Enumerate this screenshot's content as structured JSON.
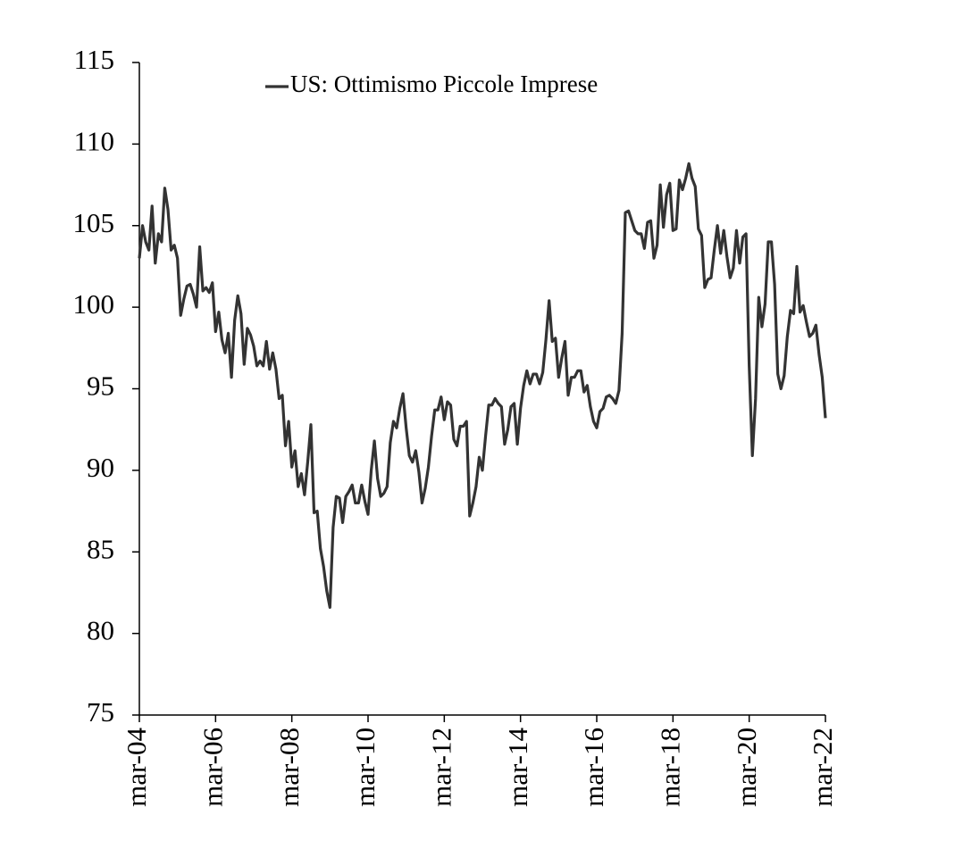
{
  "chart_data": {
    "type": "line",
    "categories": [
      "mar-04",
      null,
      null,
      null,
      null,
      null,
      null,
      null,
      null,
      null,
      null,
      null,
      null,
      null,
      null,
      null,
      null,
      null,
      null,
      null,
      null,
      null,
      null,
      null,
      "mar-06",
      null,
      null,
      null,
      null,
      null,
      null,
      null,
      null,
      null,
      null,
      null,
      null,
      null,
      null,
      null,
      null,
      null,
      null,
      null,
      null,
      null,
      null,
      null,
      "mar-08",
      null,
      null,
      null,
      null,
      null,
      null,
      null,
      null,
      null,
      null,
      null,
      null,
      null,
      null,
      null,
      null,
      null,
      null,
      null,
      null,
      null,
      null,
      null,
      "mar-10",
      null,
      null,
      null,
      null,
      null,
      null,
      null,
      null,
      null,
      null,
      null,
      null,
      null,
      null,
      null,
      null,
      null,
      null,
      null,
      null,
      null,
      null,
      null,
      "mar-12",
      null,
      null,
      null,
      null,
      null,
      null,
      null,
      null,
      null,
      null,
      null,
      null,
      null,
      null,
      null,
      null,
      null,
      null,
      null,
      null,
      null,
      null,
      null,
      "mar-14",
      null,
      null,
      null,
      null,
      null,
      null,
      null,
      null,
      null,
      null,
      null,
      null,
      null,
      null,
      null,
      null,
      null,
      null,
      null,
      null,
      null,
      null,
      null,
      "mar-16",
      null,
      null,
      null,
      null,
      null,
      null,
      null,
      null,
      null,
      null,
      null,
      null,
      null,
      null,
      null,
      null,
      null,
      null,
      null,
      null,
      null,
      null,
      null,
      "mar-18",
      null,
      null,
      null,
      null,
      null,
      null,
      null,
      null,
      null,
      null,
      null,
      null,
      null,
      null,
      null,
      null,
      null,
      null,
      null,
      null,
      null,
      null,
      null,
      "mar-20",
      null,
      null,
      null,
      null,
      null,
      null,
      null,
      null,
      null,
      null,
      null,
      null,
      null,
      null,
      null,
      null,
      null,
      null,
      null,
      null,
      null,
      null,
      null,
      "mar-22"
    ],
    "series": [
      {
        "name": "US: Ottimismo Piccole Imprese",
        "color": "#333333",
        "values": [
          103,
          105,
          104,
          103.5,
          106.2,
          102.7,
          104.5,
          104,
          107.3,
          106,
          103.5,
          103.8,
          103,
          99.5,
          100.5,
          101.3,
          101.4,
          100.8,
          100,
          103.7,
          101,
          101.2,
          100.9,
          101.5,
          98.5,
          99.7,
          98,
          97.2,
          98.4,
          95.7,
          99.2,
          100.7,
          99.6,
          96.5,
          98.7,
          98.3,
          97.6,
          96.4,
          96.7,
          96.4,
          97.9,
          96.2,
          97.2,
          96.2,
          94.4,
          94.6,
          91.5,
          93,
          90.2,
          91.2,
          89,
          89.8,
          88.5,
          90.5,
          92.8,
          87.4,
          87.5,
          85.2,
          84.1,
          82.6,
          81.6,
          86.5,
          88.4,
          88.3,
          86.8,
          88.4,
          88.7,
          89.1,
          88,
          88,
          89.1,
          88.1,
          87.3,
          90,
          91.8,
          89.5,
          88.4,
          88.6,
          89,
          91.7,
          93,
          92.6,
          93.8,
          94.7,
          92.6,
          90.9,
          90.5,
          91.2,
          89.9,
          88,
          88.9,
          90.2,
          92.1,
          93.7,
          93.7,
          94.5,
          93.1,
          94.2,
          94,
          91.9,
          91.5,
          92.7,
          92.7,
          93,
          87.2,
          88,
          89,
          90.8,
          90,
          92.1,
          94,
          94,
          94.4,
          94.1,
          93.9,
          91.6,
          92.5,
          93.9,
          94.1,
          91.6,
          93.8,
          95.2,
          96.1,
          95.3,
          95.9,
          95.9,
          95.3,
          96,
          98,
          100.4,
          97.9,
          98.1,
          95.7,
          96.9,
          97.9,
          94.6,
          95.7,
          95.7,
          96.1,
          96.1,
          94.8,
          95.2,
          93.9,
          93,
          92.6,
          93.6,
          93.8,
          94.5,
          94.6,
          94.4,
          94.1,
          94.9,
          98.4,
          105.8,
          105.9,
          105.3,
          104.7,
          104.5,
          104.5,
          103.6,
          105.2,
          105.3,
          103,
          103.8,
          107.5,
          104.9,
          106.9,
          107.6,
          104.7,
          104.8,
          107.8,
          107.2,
          107.9,
          108.8,
          107.9,
          107.4,
          104.8,
          104.4,
          101.2,
          101.7,
          101.8,
          103.5,
          105,
          103.3,
          104.7,
          103.1,
          101.8,
          102.4,
          104.7,
          102.7,
          104.3,
          104.5,
          96.4,
          90.9,
          94.4,
          100.6,
          98.8,
          100.2,
          104,
          104,
          101.4,
          95.9,
          95,
          95.8,
          98.2,
          99.8,
          99.6,
          102.5,
          99.7,
          100.1,
          99.1,
          98.2,
          98.4,
          98.9,
          97.1,
          95.7,
          93.2
        ]
      }
    ],
    "ylim": [
      75,
      115
    ],
    "yticks": [
      75,
      80,
      85,
      90,
      95,
      100,
      105,
      110,
      115
    ],
    "grid": false,
    "legend": "top"
  }
}
